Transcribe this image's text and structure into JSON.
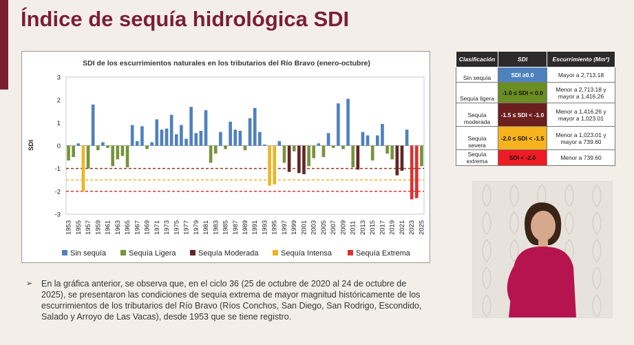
{
  "page": {
    "title": "Índice de sequía hidrológica SDI"
  },
  "chart_data": {
    "type": "bar",
    "title": "SDI de los escurrimientos naturales en los tributarios del Río Bravo (enero-octubre)",
    "ylabel": "SDI",
    "xlabel": "",
    "ylim": [
      -3,
      3
    ],
    "yticks": [
      3,
      2,
      1,
      0,
      -1,
      -2,
      -3
    ],
    "xtick_labels": [
      "1953",
      "1955",
      "1957",
      "1959",
      "1961",
      "1963",
      "1965",
      "1967",
      "1969",
      "1971",
      "1973",
      "1975",
      "1977",
      "1979",
      "1981",
      "1983",
      "1985",
      "1987",
      "1989",
      "1991",
      "1993",
      "1995",
      "1997",
      "1999",
      "2001",
      "2003",
      "2005",
      "2007",
      "2009",
      "2011",
      "2013",
      "2015",
      "2017",
      "2019",
      "2021",
      "2023",
      "2025"
    ],
    "years": [
      1953,
      1954,
      1955,
      1956,
      1957,
      1958,
      1959,
      1960,
      1961,
      1962,
      1963,
      1964,
      1965,
      1966,
      1967,
      1968,
      1969,
      1970,
      1971,
      1972,
      1973,
      1974,
      1975,
      1976,
      1977,
      1978,
      1979,
      1980,
      1981,
      1982,
      1983,
      1984,
      1985,
      1986,
      1987,
      1988,
      1989,
      1990,
      1991,
      1992,
      1993,
      1994,
      1995,
      1996,
      1997,
      1998,
      1999,
      2000,
      2001,
      2002,
      2003,
      2004,
      2005,
      2006,
      2007,
      2008,
      2009,
      2010,
      2011,
      2012,
      2013,
      2014,
      2015,
      2016,
      2017,
      2018,
      2019,
      2020,
      2021,
      2022,
      2023,
      2024,
      2025
    ],
    "values": [
      -0.65,
      -0.5,
      0.1,
      -2.0,
      -1.0,
      1.8,
      -0.2,
      0.15,
      -0.1,
      -0.9,
      -0.6,
      -0.45,
      -0.95,
      0.9,
      0.2,
      0.85,
      -0.15,
      0.15,
      1.15,
      0.7,
      0.75,
      1.35,
      0.5,
      0.9,
      0.3,
      1.7,
      0.55,
      0.65,
      1.55,
      -0.75,
      -0.35,
      0.6,
      -0.15,
      1.05,
      0.7,
      0.65,
      -0.2,
      1.2,
      1.65,
      0.6,
      0.05,
      -1.75,
      -1.7,
      0.2,
      -0.75,
      -1.15,
      -0.25,
      -1.2,
      -1.25,
      -0.9,
      -0.55,
      0.1,
      -0.5,
      0.55,
      -0.1,
      1.85,
      -0.15,
      2.05,
      -0.95,
      -1.05,
      0.6,
      0.45,
      -0.65,
      0.45,
      0.95,
      -0.35,
      -0.6,
      -1.3,
      -1.1,
      0.7,
      -2.35,
      -2.3,
      -0.9
    ],
    "categories": [
      1,
      1,
      0,
      3,
      1,
      0,
      1,
      0,
      1,
      1,
      1,
      1,
      1,
      0,
      0,
      0,
      1,
      0,
      0,
      0,
      0,
      0,
      0,
      0,
      0,
      0,
      0,
      0,
      0,
      1,
      1,
      0,
      1,
      0,
      0,
      0,
      1,
      0,
      0,
      0,
      0,
      3,
      3,
      0,
      1,
      2,
      1,
      2,
      2,
      1,
      1,
      0,
      1,
      0,
      1,
      0,
      1,
      0,
      1,
      2,
      0,
      0,
      1,
      0,
      0,
      1,
      1,
      2,
      2,
      0,
      4,
      4,
      1
    ],
    "thresholds": [
      -1,
      -1.5,
      -2
    ],
    "series": [
      {
        "name": "Sin sequía",
        "color": "#4f81bd"
      },
      {
        "name": "Sequía Ligera",
        "color": "#77933c"
      },
      {
        "name": "Sequía Moderada",
        "color": "#632523"
      },
      {
        "name": "Sequía Intensa",
        "color": "#f0b323"
      },
      {
        "name": "Sequía Extrema",
        "color": "#e03030"
      }
    ]
  },
  "classification_table": {
    "headers": [
      "Clasificación",
      "SDI",
      "Escurrimiento (Mm³)"
    ],
    "rows": [
      {
        "class": "Sin sequía",
        "sdi": "SDI ≥0.0",
        "runoff": "Mayor a 2,713.18",
        "color": "#4f81bd",
        "text_color": "#ffffff"
      },
      {
        "class": "Sequía ligera",
        "sdi": "-1.0 ≤ SDI < 0.0",
        "runoff": "Menor a 2,713.18 y mayor a 1,416.26",
        "color": "#6b8e23",
        "text_color": "#111111"
      },
      {
        "class": "Sequía moderada",
        "sdi": "-1.5 ≤ SDI < -1.0",
        "runoff": "Menor a 1,416.26 y mayor a 1,023.01",
        "color": "#6b1f1f",
        "text_color": "#ffffff"
      },
      {
        "class": "Sequía severa",
        "sdi": "-2.0 ≤ SDI < -1.5",
        "runoff": "Menor a 1,023.01 y mayor a 739.60",
        "color": "#f7b21e",
        "text_color": "#111111"
      },
      {
        "class": "Sequía extrema",
        "sdi": "SDI < -2.0",
        "runoff": "Menor a 739.60",
        "color": "#ee1c25",
        "text_color": "#111111"
      }
    ]
  },
  "note": {
    "bullet": "➢",
    "text": "En la gráfica anterior, se observa que, en el ciclo 36 (25 de octubre de 2020 al 24 de octubre de 2025), se presentaron las condiciones de sequía extrema de mayor magnitud históricamente de los escurrimientos de los tributarios del Río Bravo (Ríos Conchos, San Diego, San Rodrigo, Escondido, Salado y Arroyo de Las Vacas), desde 1953 que se tiene registro."
  }
}
